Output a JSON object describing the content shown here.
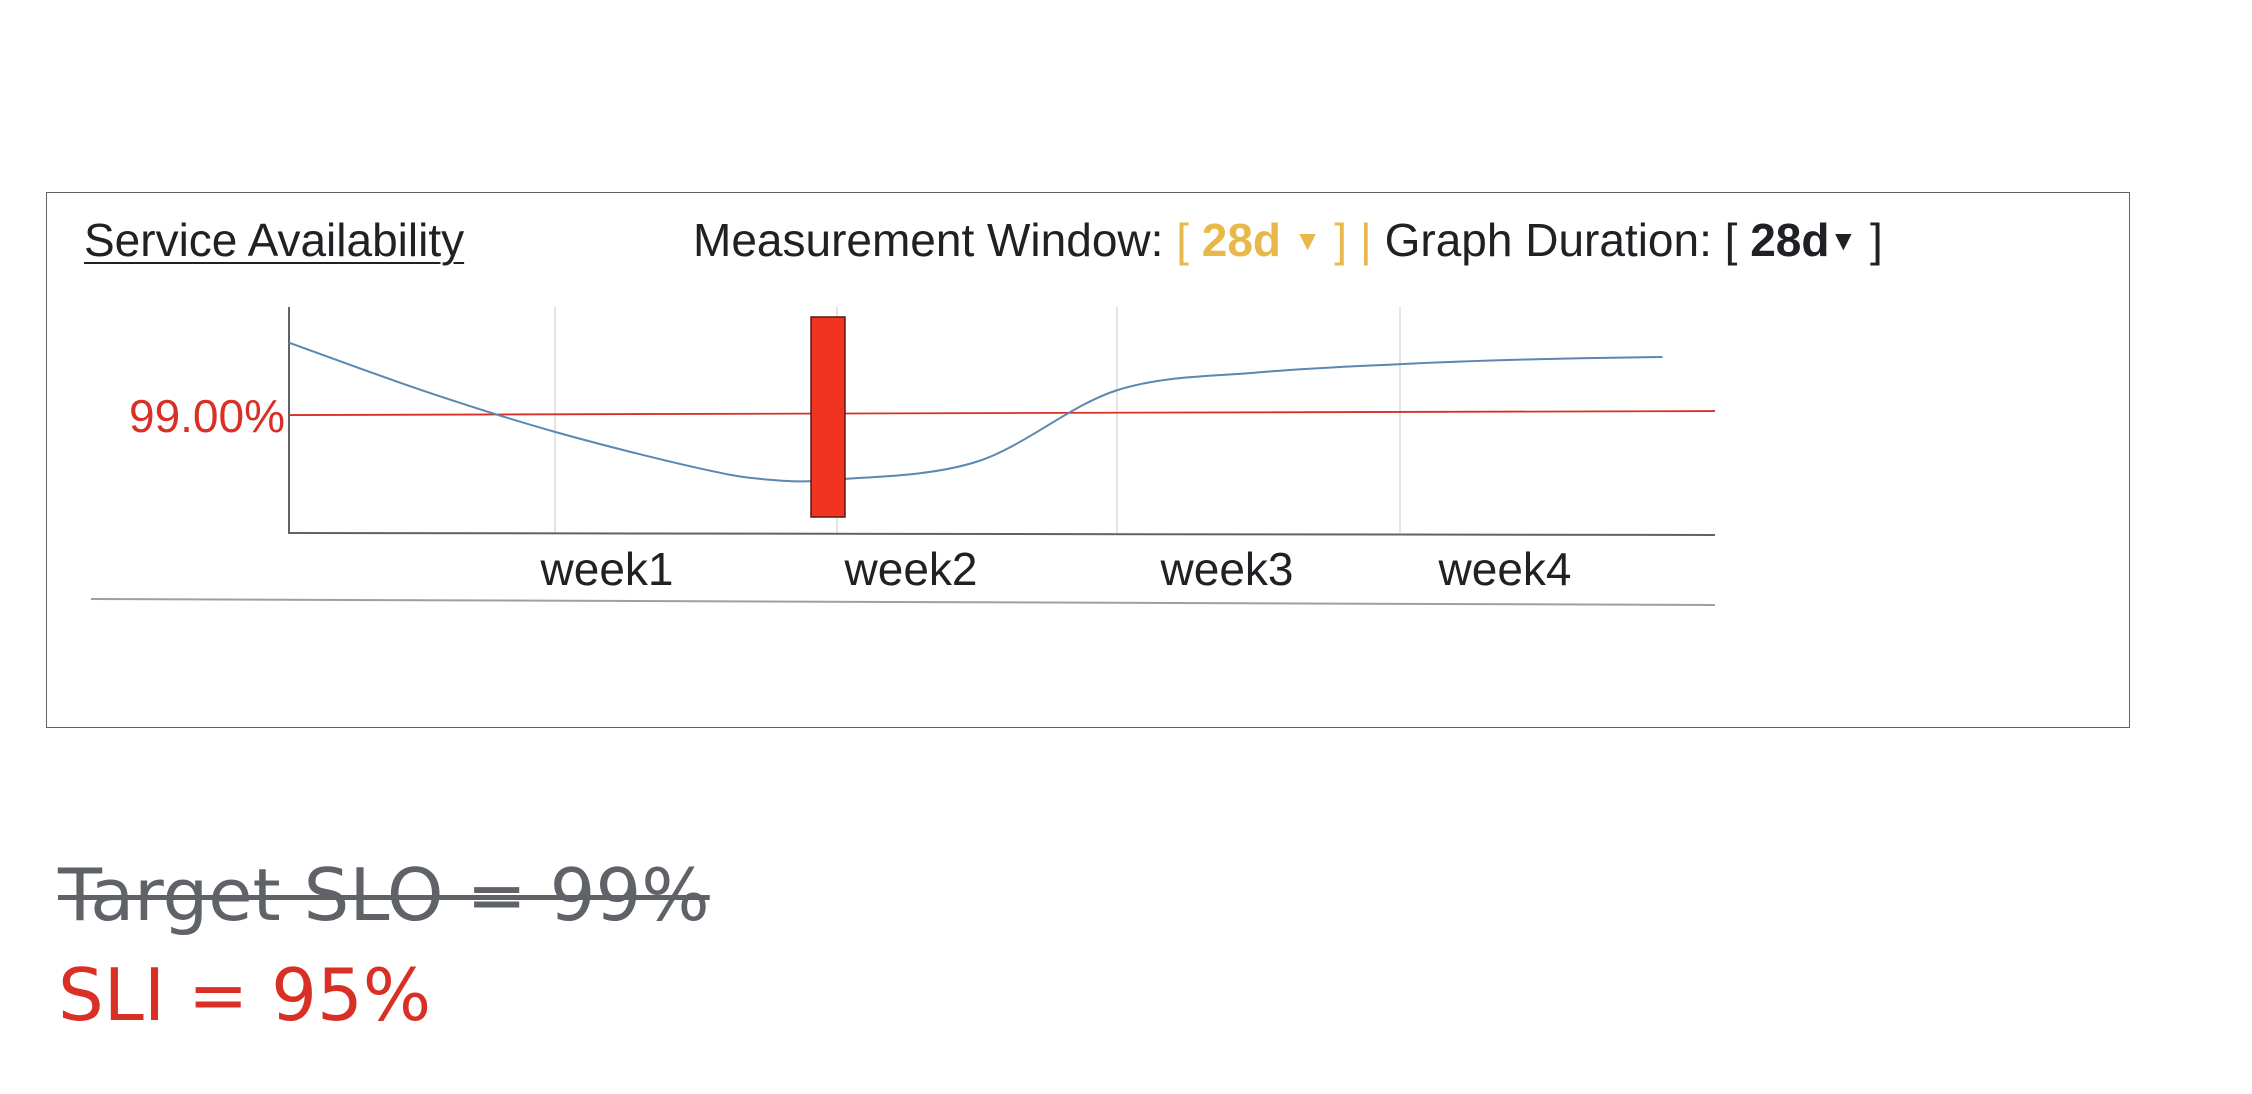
{
  "panel": {
    "title": "Service Availability",
    "controls": {
      "measurement_label": "Measurement Window:",
      "measurement_open": "[",
      "measurement_value": "28d",
      "measurement_arrow": "▼",
      "measurement_close": "] |",
      "graph_label": "Graph Duration: [",
      "graph_value": "28d",
      "graph_arrow": "▼",
      "graph_close": "]"
    }
  },
  "chart_data": {
    "type": "line",
    "categories": [
      "week1",
      "week2",
      "week3",
      "week4"
    ],
    "threshold": {
      "label": "99.00%",
      "value": 99.0,
      "color": "#d93025"
    },
    "series": [
      {
        "color": "#5b87b0",
        "points": [
          [
            0.0,
            99.6
          ],
          [
            0.5,
            99.2
          ],
          [
            1.0,
            98.85
          ],
          [
            1.5,
            98.55
          ],
          [
            1.75,
            98.45
          ],
          [
            2.0,
            98.45
          ],
          [
            2.5,
            98.6
          ],
          [
            3.0,
            99.2
          ],
          [
            3.5,
            99.35
          ],
          [
            4.0,
            99.42
          ],
          [
            4.5,
            99.46
          ],
          [
            5.0,
            99.48
          ]
        ]
      }
    ],
    "highlight": {
      "x": 2.0,
      "color": "#f0341f"
    },
    "colors": {
      "axis": "#5f6368",
      "grid": "#dadce0"
    }
  },
  "footer": {
    "slo_text": "Target SLO = 99%",
    "sli_text": "SLI = 95%",
    "slo_color": "#5f6368",
    "sli_color": "#d93025"
  }
}
